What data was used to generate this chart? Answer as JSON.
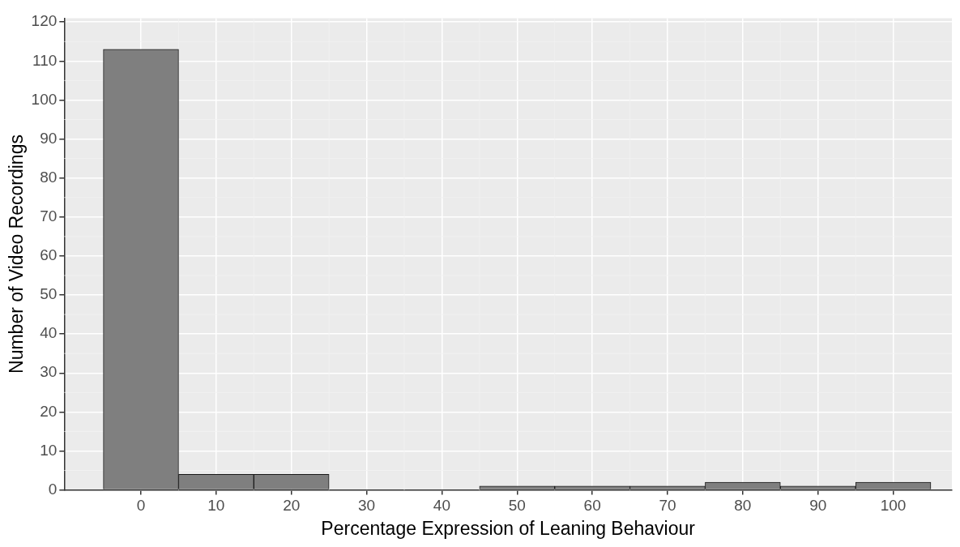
{
  "chart_data": {
    "type": "histogram",
    "xlabel": "Percentage Expression of Leaning Behaviour",
    "ylabel": "Number of Video Recordings",
    "bins": [
      -5,
      5,
      15,
      25,
      35,
      45,
      55,
      65,
      75,
      85,
      95,
      105
    ],
    "values": [
      113,
      4,
      4,
      0,
      0,
      1,
      1,
      1,
      2,
      1,
      2
    ],
    "color": "#7f7f7f",
    "xlim": [
      -10.2,
      107.8
    ],
    "xticks": [
      0,
      10,
      20,
      30,
      40,
      50,
      60,
      70,
      80,
      90,
      100
    ],
    "ylim": [
      0,
      121
    ],
    "yticks": [
      0,
      10,
      20,
      30,
      40,
      50,
      60,
      70,
      80,
      90,
      100,
      110,
      120
    ],
    "grid": true,
    "legend": false
  }
}
